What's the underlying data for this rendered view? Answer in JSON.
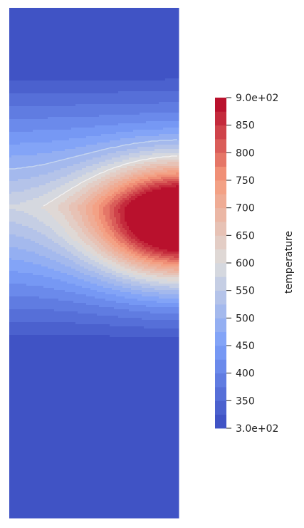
{
  "colorbar": {
    "title": "temperature",
    "range": [
      300,
      900
    ],
    "labels": [
      "9.0e+02",
      "850",
      "800",
      "750",
      "700",
      "650",
      "600",
      "550",
      "500",
      "450",
      "400",
      "350",
      "3.0e+02"
    ],
    "label_values": [
      900,
      850,
      800,
      750,
      700,
      650,
      600,
      550,
      500,
      450,
      400,
      350,
      300
    ],
    "band_count": 24,
    "colormap": "cool to warm",
    "low_color": "#3b4cc0",
    "mid_color": "#dddddd",
    "high_color": "#b40426"
  },
  "field": {
    "name": "temperature",
    "contour_lines": [
      {
        "level": 500,
        "color": "#c7d7f0"
      },
      {
        "level": 600,
        "color": "#f2f2f2"
      }
    ]
  }
}
